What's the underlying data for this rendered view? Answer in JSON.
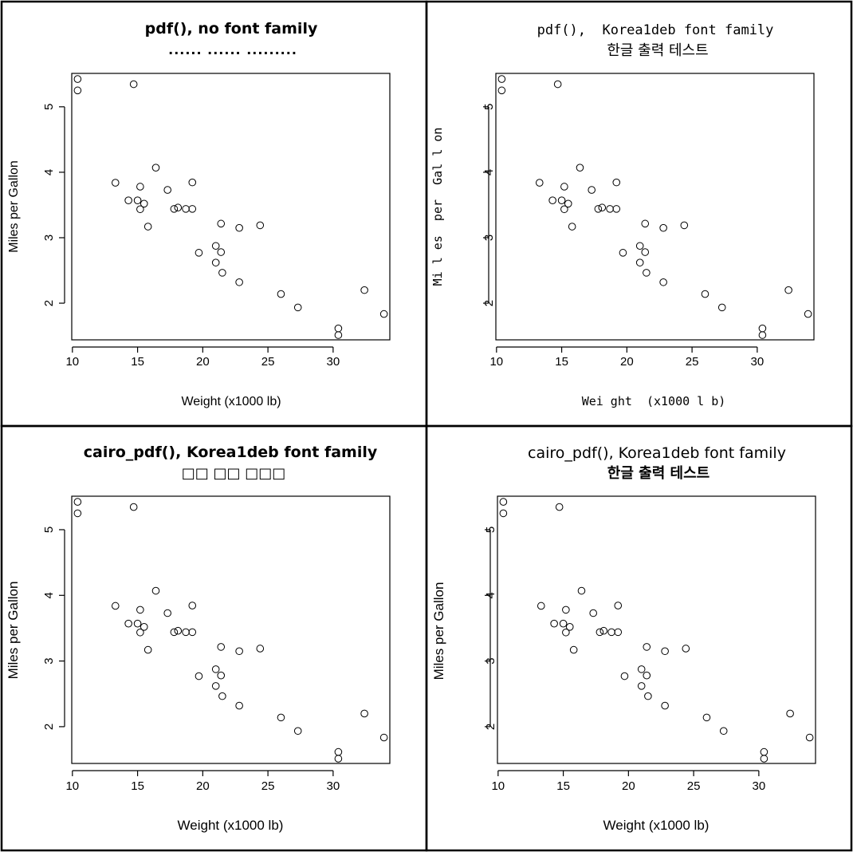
{
  "chart_data": [
    {
      "type": "scatter",
      "title": "pdf(), no font family",
      "subtitle": "...... ...... .........",
      "xlabel": "Weight (x1000 lb)",
      "ylabel": "Miles per Gallon",
      "xticks": [
        "10",
        "15",
        "20",
        "25",
        "30"
      ],
      "yticks": [
        "2",
        "3",
        "4",
        "5"
      ],
      "xlim": [
        9.95,
        34.35
      ],
      "ylim": [
        1.44,
        5.51
      ],
      "grid": false,
      "legend": "none",
      "points": [
        {
          "x": 21.0,
          "y": 2.62
        },
        {
          "x": 21.0,
          "y": 2.875
        },
        {
          "x": 22.8,
          "y": 2.32
        },
        {
          "x": 21.4,
          "y": 3.215
        },
        {
          "x": 18.7,
          "y": 3.44
        },
        {
          "x": 18.1,
          "y": 3.46
        },
        {
          "x": 14.3,
          "y": 3.57
        },
        {
          "x": 24.4,
          "y": 3.19
        },
        {
          "x": 22.8,
          "y": 3.15
        },
        {
          "x": 19.2,
          "y": 3.44
        },
        {
          "x": 17.8,
          "y": 3.44
        },
        {
          "x": 16.4,
          "y": 4.07
        },
        {
          "x": 17.3,
          "y": 3.73
        },
        {
          "x": 15.2,
          "y": 3.78
        },
        {
          "x": 10.4,
          "y": 5.25
        },
        {
          "x": 10.4,
          "y": 5.424
        },
        {
          "x": 14.7,
          "y": 5.345
        },
        {
          "x": 32.4,
          "y": 2.2
        },
        {
          "x": 30.4,
          "y": 1.615
        },
        {
          "x": 33.9,
          "y": 1.835
        },
        {
          "x": 21.5,
          "y": 2.465
        },
        {
          "x": 15.5,
          "y": 3.52
        },
        {
          "x": 15.2,
          "y": 3.435
        },
        {
          "x": 13.3,
          "y": 3.84
        },
        {
          "x": 19.2,
          "y": 3.845
        },
        {
          "x": 27.3,
          "y": 1.935
        },
        {
          "x": 26.0,
          "y": 2.14
        },
        {
          "x": 30.4,
          "y": 1.513
        },
        {
          "x": 15.8,
          "y": 3.17
        },
        {
          "x": 19.7,
          "y": 2.77
        },
        {
          "x": 15.0,
          "y": 3.57
        },
        {
          "x": 21.4,
          "y": 2.78
        }
      ]
    },
    {
      "type": "scatter",
      "title": "pdf(),  Korea1deb font family",
      "subtitle": "한글 출력 테스트",
      "xlabel": "Wei ght  (x1000 l b)",
      "ylabel": "Mi l es  per  Gal l on",
      "xticks": [
        "10",
        "15",
        "20",
        "25",
        "30"
      ],
      "yticks": [
        "2",
        "3",
        "4",
        "5"
      ],
      "xlim": [
        9.95,
        34.35
      ],
      "ylim": [
        1.44,
        5.51
      ],
      "grid": false,
      "legend": "none",
      "points": [
        {
          "x": 21.0,
          "y": 2.62
        },
        {
          "x": 21.0,
          "y": 2.875
        },
        {
          "x": 22.8,
          "y": 2.32
        },
        {
          "x": 21.4,
          "y": 3.215
        },
        {
          "x": 18.7,
          "y": 3.44
        },
        {
          "x": 18.1,
          "y": 3.46
        },
        {
          "x": 14.3,
          "y": 3.57
        },
        {
          "x": 24.4,
          "y": 3.19
        },
        {
          "x": 22.8,
          "y": 3.15
        },
        {
          "x": 19.2,
          "y": 3.44
        },
        {
          "x": 17.8,
          "y": 3.44
        },
        {
          "x": 16.4,
          "y": 4.07
        },
        {
          "x": 17.3,
          "y": 3.73
        },
        {
          "x": 15.2,
          "y": 3.78
        },
        {
          "x": 10.4,
          "y": 5.25
        },
        {
          "x": 10.4,
          "y": 5.424
        },
        {
          "x": 14.7,
          "y": 5.345
        },
        {
          "x": 32.4,
          "y": 2.2
        },
        {
          "x": 30.4,
          "y": 1.615
        },
        {
          "x": 33.9,
          "y": 1.835
        },
        {
          "x": 21.5,
          "y": 2.465
        },
        {
          "x": 15.5,
          "y": 3.52
        },
        {
          "x": 15.2,
          "y": 3.435
        },
        {
          "x": 13.3,
          "y": 3.84
        },
        {
          "x": 19.2,
          "y": 3.845
        },
        {
          "x": 27.3,
          "y": 1.935
        },
        {
          "x": 26.0,
          "y": 2.14
        },
        {
          "x": 30.4,
          "y": 1.513
        },
        {
          "x": 15.8,
          "y": 3.17
        },
        {
          "x": 19.7,
          "y": 2.77
        },
        {
          "x": 15.0,
          "y": 3.57
        },
        {
          "x": 21.4,
          "y": 2.78
        }
      ]
    },
    {
      "type": "scatter",
      "title": "cairo_pdf(), Korea1deb font family",
      "subtitle": "□□ □□ □□□",
      "xlabel": "Weight (x1000 lb)",
      "ylabel": "Miles per Gallon",
      "xticks": [
        "10",
        "15",
        "20",
        "25",
        "30"
      ],
      "yticks": [
        "2",
        "3",
        "4",
        "5"
      ],
      "xlim": [
        9.95,
        34.35
      ],
      "ylim": [
        1.44,
        5.51
      ],
      "grid": false,
      "legend": "none",
      "points": [
        {
          "x": 21.0,
          "y": 2.62
        },
        {
          "x": 21.0,
          "y": 2.875
        },
        {
          "x": 22.8,
          "y": 2.32
        },
        {
          "x": 21.4,
          "y": 3.215
        },
        {
          "x": 18.7,
          "y": 3.44
        },
        {
          "x": 18.1,
          "y": 3.46
        },
        {
          "x": 14.3,
          "y": 3.57
        },
        {
          "x": 24.4,
          "y": 3.19
        },
        {
          "x": 22.8,
          "y": 3.15
        },
        {
          "x": 19.2,
          "y": 3.44
        },
        {
          "x": 17.8,
          "y": 3.44
        },
        {
          "x": 16.4,
          "y": 4.07
        },
        {
          "x": 17.3,
          "y": 3.73
        },
        {
          "x": 15.2,
          "y": 3.78
        },
        {
          "x": 10.4,
          "y": 5.25
        },
        {
          "x": 10.4,
          "y": 5.424
        },
        {
          "x": 14.7,
          "y": 5.345
        },
        {
          "x": 32.4,
          "y": 2.2
        },
        {
          "x": 30.4,
          "y": 1.615
        },
        {
          "x": 33.9,
          "y": 1.835
        },
        {
          "x": 21.5,
          "y": 2.465
        },
        {
          "x": 15.5,
          "y": 3.52
        },
        {
          "x": 15.2,
          "y": 3.435
        },
        {
          "x": 13.3,
          "y": 3.84
        },
        {
          "x": 19.2,
          "y": 3.845
        },
        {
          "x": 27.3,
          "y": 1.935
        },
        {
          "x": 26.0,
          "y": 2.14
        },
        {
          "x": 30.4,
          "y": 1.513
        },
        {
          "x": 15.8,
          "y": 3.17
        },
        {
          "x": 19.7,
          "y": 2.77
        },
        {
          "x": 15.0,
          "y": 3.57
        },
        {
          "x": 21.4,
          "y": 2.78
        }
      ]
    },
    {
      "type": "scatter",
      "title": "cairo_pdf(), Korea1deb font family",
      "subtitle": "한글 출력 테스트",
      "xlabel": "Weight (x1000 lb)",
      "ylabel": "Miles per Gallon",
      "xticks": [
        "10",
        "15",
        "20",
        "25",
        "30"
      ],
      "yticks": [
        "2",
        "3",
        "4",
        "5"
      ],
      "xlim": [
        9.95,
        34.35
      ],
      "ylim": [
        1.44,
        5.51
      ],
      "grid": false,
      "legend": "none",
      "points": [
        {
          "x": 21.0,
          "y": 2.62
        },
        {
          "x": 21.0,
          "y": 2.875
        },
        {
          "x": 22.8,
          "y": 2.32
        },
        {
          "x": 21.4,
          "y": 3.215
        },
        {
          "x": 18.7,
          "y": 3.44
        },
        {
          "x": 18.1,
          "y": 3.46
        },
        {
          "x": 14.3,
          "y": 3.57
        },
        {
          "x": 24.4,
          "y": 3.19
        },
        {
          "x": 22.8,
          "y": 3.15
        },
        {
          "x": 19.2,
          "y": 3.44
        },
        {
          "x": 17.8,
          "y": 3.44
        },
        {
          "x": 16.4,
          "y": 4.07
        },
        {
          "x": 17.3,
          "y": 3.73
        },
        {
          "x": 15.2,
          "y": 3.78
        },
        {
          "x": 10.4,
          "y": 5.25
        },
        {
          "x": 10.4,
          "y": 5.424
        },
        {
          "x": 14.7,
          "y": 5.345
        },
        {
          "x": 32.4,
          "y": 2.2
        },
        {
          "x": 30.4,
          "y": 1.615
        },
        {
          "x": 33.9,
          "y": 1.835
        },
        {
          "x": 21.5,
          "y": 2.465
        },
        {
          "x": 15.5,
          "y": 3.52
        },
        {
          "x": 15.2,
          "y": 3.435
        },
        {
          "x": 13.3,
          "y": 3.84
        },
        {
          "x": 19.2,
          "y": 3.845
        },
        {
          "x": 27.3,
          "y": 1.935
        },
        {
          "x": 26.0,
          "y": 2.14
        },
        {
          "x": 30.4,
          "y": 1.513
        },
        {
          "x": 15.8,
          "y": 3.17
        },
        {
          "x": 19.7,
          "y": 2.77
        },
        {
          "x": 15.0,
          "y": 3.57
        },
        {
          "x": 21.4,
          "y": 2.78
        }
      ]
    }
  ]
}
